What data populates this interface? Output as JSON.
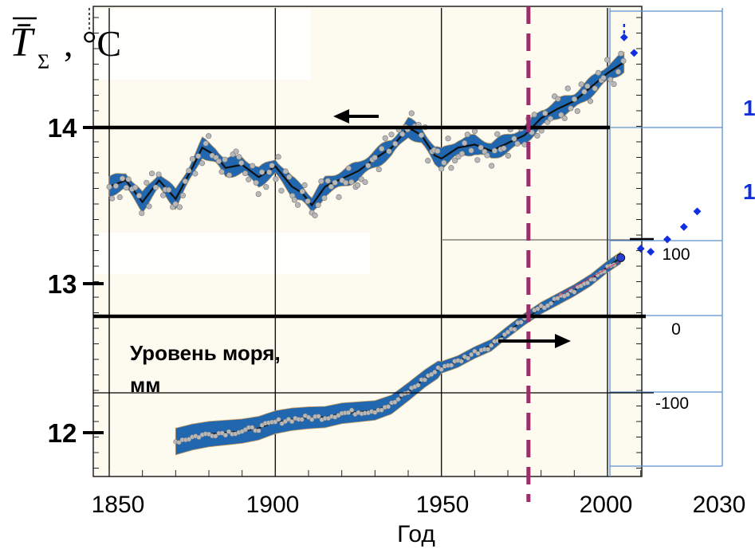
{
  "chart_data": {
    "type": "line",
    "xlabel": "Год",
    "x_ticks": [
      "1850",
      "1900",
      "1950",
      "2000",
      "2030"
    ],
    "xlim": [
      1850,
      2030
    ],
    "y_axis_label": "T̄Σ, °C",
    "y_ticks": [
      "14",
      "13",
      "12"
    ],
    "ylim": [
      11.85,
      14.55
    ],
    "y2_ticks": [
      "100",
      "0",
      "-100"
    ],
    "y2lim": [
      -190,
      130
    ],
    "series": [
      {
        "name": "",
        "x": [
          1850,
          1855,
          1860,
          1865,
          1870,
          1875,
          1878,
          1882,
          1885,
          1890,
          1895,
          1900,
          1905,
          1908,
          1911,
          1915,
          1920,
          1925,
          1930,
          1935,
          1940,
          1944,
          1948,
          1950,
          1955,
          1960,
          1965,
          1970,
          1975,
          1980,
          1985,
          1990,
          1995,
          2000,
          2005
        ],
        "values": [
          13.62,
          13.66,
          13.52,
          13.66,
          13.54,
          13.74,
          13.87,
          13.82,
          13.74,
          13.76,
          13.68,
          13.75,
          13.62,
          13.58,
          13.5,
          13.62,
          13.67,
          13.72,
          13.8,
          13.87,
          14.0,
          13.95,
          13.82,
          13.8,
          13.87,
          13.89,
          13.85,
          13.9,
          13.95,
          14.06,
          14.12,
          14.17,
          14.26,
          14.35,
          14.42
        ]
      },
      {
        "name": "Уровень моря, мм",
        "x": [
          1870,
          1875,
          1880,
          1885,
          1890,
          1895,
          1900,
          1905,
          1910,
          1915,
          1920,
          1925,
          1930,
          1935,
          1940,
          1945,
          1950,
          1955,
          1960,
          1965,
          1970,
          1975,
          1980,
          1985,
          1990,
          1995,
          2000,
          2004
        ],
        "values": [
          -170,
          -164,
          -160,
          -158,
          -156,
          -152,
          -144,
          -140,
          -138,
          -137,
          -132,
          -130,
          -128,
          -120,
          -103,
          -85,
          -70,
          -62,
          -50,
          -40,
          -22,
          -5,
          10,
          22,
          34,
          48,
          66,
          78
        ]
      },
      {
        "name": "",
        "x": [
          2005,
          2008,
          2010,
          2013,
          2018,
          2023,
          2027
        ],
        "values": [
          14.58,
          14.48,
          13.22,
          13.2,
          13.28,
          13.36,
          13.46
        ]
      }
    ],
    "vertical_marker_year": 1975,
    "annotation_left": "1",
    "annotation_right": "1"
  }
}
